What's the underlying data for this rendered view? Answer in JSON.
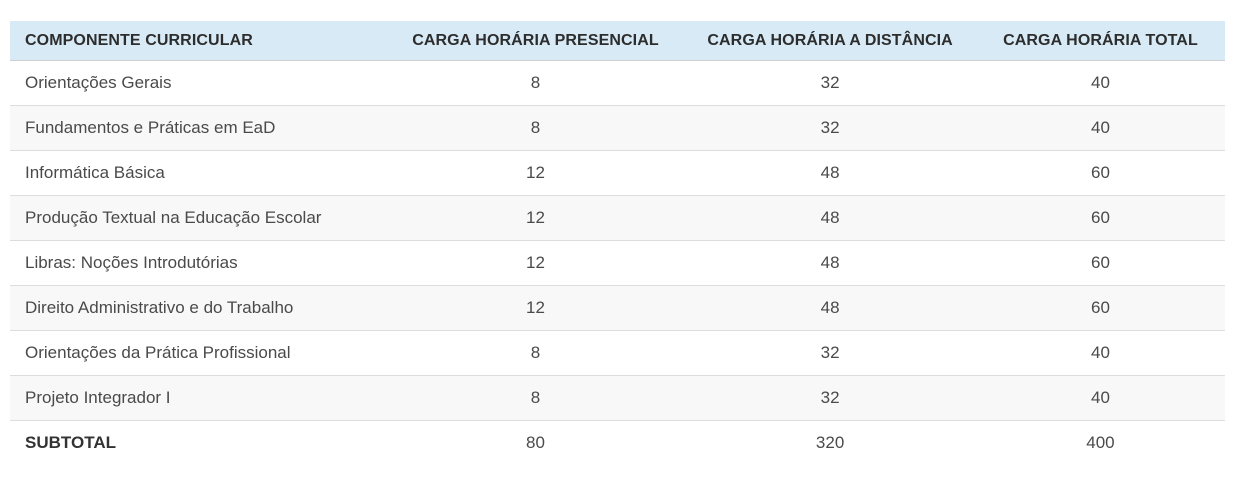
{
  "table": {
    "columns": {
      "componente": "COMPONENTE CURRICULAR",
      "presencial": "CARGA HORÁRIA PRESENCIAL",
      "distancia": "CARGA HORÁRIA A DISTÂNCIA",
      "total": "CARGA HORÁRIA TOTAL"
    },
    "rows": [
      {
        "componente": "Orientações Gerais",
        "presencial": "8",
        "distancia": "32",
        "total": "40"
      },
      {
        "componente": "Fundamentos e Práticas em EaD",
        "presencial": "8",
        "distancia": "32",
        "total": "40"
      },
      {
        "componente": "Informática Básica",
        "presencial": "12",
        "distancia": "48",
        "total": "60"
      },
      {
        "componente": "Produção Textual na Educação Escolar",
        "presencial": "12",
        "distancia": "48",
        "total": "60"
      },
      {
        "componente": "Libras: Noções Introdutórias",
        "presencial": "12",
        "distancia": "48",
        "total": "60"
      },
      {
        "componente": "Direito Administrativo e do Trabalho",
        "presencial": "12",
        "distancia": "48",
        "total": "60"
      },
      {
        "componente": "Orientações da Prática Profissional",
        "presencial": "8",
        "distancia": "32",
        "total": "40"
      },
      {
        "componente": "Projeto Integrador I",
        "presencial": "8",
        "distancia": "32",
        "total": "40"
      }
    ],
    "subtotal": {
      "label": "SUBTOTAL",
      "presencial": "80",
      "distancia": "320",
      "total": "400"
    }
  },
  "colors": {
    "header_bg": "#d7eaf6",
    "stripe_bg": "#f8f8f9",
    "divider": "#dddddd",
    "header_text": "#2d2d2d",
    "body_text": "#4a4a4a"
  }
}
